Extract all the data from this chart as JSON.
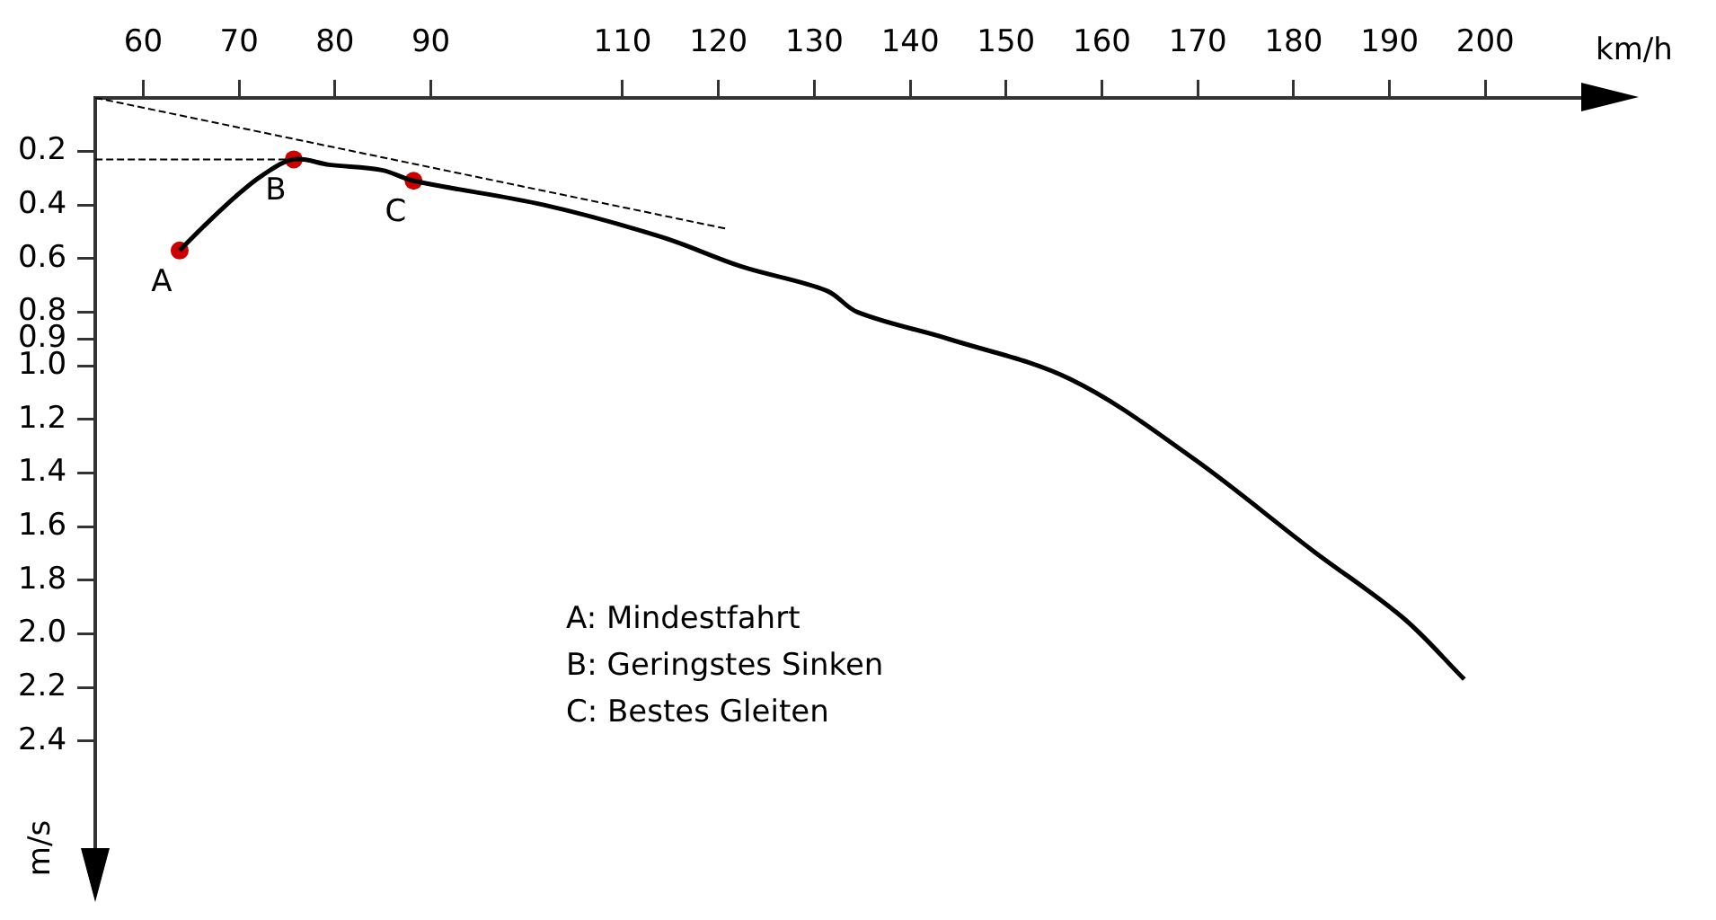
{
  "chart_data": {
    "type": "line",
    "xlabel": "km/h",
    "ylabel": "m/s",
    "xlim": [
      55,
      210
    ],
    "xticks": [
      60,
      70,
      80,
      90,
      110,
      120,
      130,
      140,
      150,
      160,
      170,
      180,
      190,
      200
    ],
    "ylim": [
      2.8,
      0
    ],
    "yticks": [
      0.2,
      0.4,
      0.6,
      0.8,
      0.9,
      {
        "value": 1,
        "label": "1.0"
      },
      1.2,
      1.4,
      1.6,
      1.8,
      {
        "value": 2,
        "label": "2.0"
      },
      2.2,
      2.4
    ],
    "grid": false,
    "legend": false,
    "marker": "none",
    "line_style": "solid",
    "series": [
      {
        "color": "#000000",
        "x": [
          63.8,
          66.3,
          69.6,
          72.4,
          75.7,
          79.4,
          84.9,
          88.2,
          101.8,
          114.1,
          122.4,
          131.3,
          134.5,
          144.0,
          156.7,
          169.3,
          182.0,
          191.4,
          197.8
        ],
        "values": [
          0.57,
          0.48,
          0.37,
          0.29,
          0.23,
          0.25,
          0.27,
          0.31,
          0.4,
          0.52,
          0.63,
          0.72,
          0.8,
          0.9,
          1.05,
          1.34,
          1.69,
          1.94,
          2.17
        ]
      },
      {
        "type": "line",
        "color": "#000000",
        "line_style": "dashed",
        "x": [
          55,
          121
        ],
        "values": [
          0,
          0.49
        ]
      },
      {
        "type": "line",
        "color": "#000000",
        "line_style": "dashed",
        "x": [
          55,
          75.7
        ],
        "values": [
          0.23,
          0.23
        ]
      },
      {
        "type": "scatter",
        "color": "#cc0000",
        "marker": "circle",
        "x": [
          63.8,
          75.7,
          88.2
        ],
        "values": [
          0.57,
          0.23,
          0.31
        ]
      }
    ],
    "annotations": [
      {
        "text": "A",
        "x": 63.8,
        "y": 0.57
      },
      {
        "text": "B",
        "x": 75.7,
        "y": 0.23
      },
      {
        "text": "C",
        "x": 88.2,
        "y": 0.31
      },
      "A: Mindestfahrt",
      "B: Geringstes Sinken",
      "C: Bestes Gleiten"
    ]
  }
}
